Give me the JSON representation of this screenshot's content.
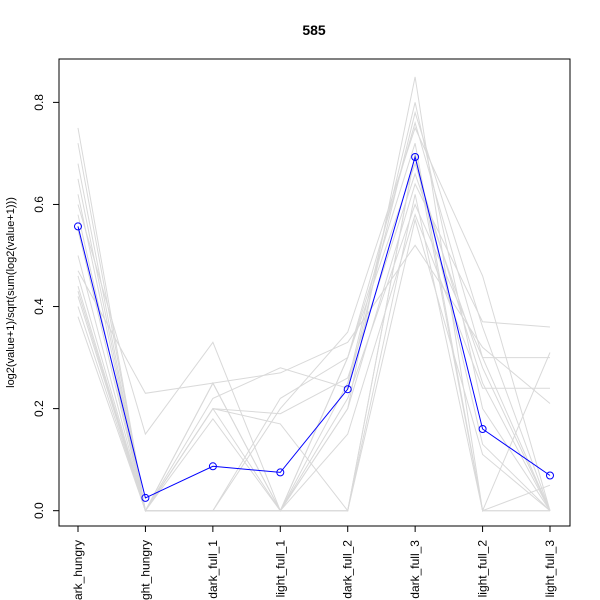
{
  "chart_data": {
    "type": "line",
    "title": "585",
    "xlabel": "",
    "ylabel": "log2(value+1)/sqrt(sum(log2(value+1)))",
    "categories": [
      "dark_hungry",
      "light_hungry",
      "dark_full_1",
      "light_full_1",
      "dark_full_2",
      "dark_full_3",
      "light_full_2",
      "light_full_3"
    ],
    "x_tick_labels_visible": [
      "ark_hungry",
      "ght_hungry",
      "dark_full_1",
      "light_full_1",
      "dark_full_2",
      "dark_full_3",
      "light_full_2",
      "light_full_3"
    ],
    "ylim": [
      -0.03,
      0.885
    ],
    "yticks": [
      0.0,
      0.2,
      0.4,
      0.6,
      0.8
    ],
    "ytick_labels": [
      "0.0",
      "0.2",
      "0.4",
      "0.6",
      "0.8"
    ],
    "grid": false,
    "legend": "none",
    "highlight_color": "#0000ff",
    "background_color": "#d9d9d9",
    "highlight": {
      "values": [
        0.557,
        0.025,
        0.087,
        0.075,
        0.238,
        0.693,
        0.16,
        0.069
      ]
    },
    "background_series": [
      {
        "values": [
          0.75,
          0.0,
          0.0,
          0.0,
          0.2,
          0.85,
          0.0,
          0.0
        ]
      },
      {
        "values": [
          0.72,
          0.0,
          0.25,
          0.0,
          0.25,
          0.8,
          0.2,
          0.0
        ]
      },
      {
        "values": [
          0.68,
          0.0,
          0.0,
          0.0,
          0.3,
          0.76,
          0.3,
          0.0
        ]
      },
      {
        "values": [
          0.65,
          0.0,
          0.2,
          0.0,
          0.0,
          0.7,
          0.0,
          0.31
        ]
      },
      {
        "values": [
          0.62,
          0.0,
          0.0,
          0.2,
          0.35,
          0.75,
          0.46,
          0.0
        ]
      },
      {
        "values": [
          0.6,
          0.15,
          0.33,
          0.0,
          0.3,
          0.68,
          0.25,
          0.0
        ]
      },
      {
        "values": [
          0.58,
          0.0,
          0.0,
          0.0,
          0.0,
          0.62,
          0.0,
          0.0
        ]
      },
      {
        "values": [
          0.55,
          0.0,
          0.25,
          0.0,
          0.2,
          0.64,
          0.37,
          0.36
        ]
      },
      {
        "values": [
          0.5,
          0.0,
          0.18,
          0.0,
          0.22,
          0.6,
          0.3,
          0.3
        ]
      },
      {
        "values": [
          0.47,
          0.23,
          0.25,
          0.27,
          0.33,
          0.52,
          0.32,
          0.21
        ]
      },
      {
        "values": [
          0.46,
          0.0,
          0.0,
          0.0,
          0.15,
          0.58,
          0.24,
          0.24
        ]
      },
      {
        "values": [
          0.44,
          0.0,
          0.2,
          0.17,
          0.0,
          0.7,
          0.13,
          0.0
        ]
      },
      {
        "values": [
          0.42,
          0.0,
          0.22,
          0.28,
          0.24,
          0.78,
          0.36,
          0.0
        ]
      },
      {
        "values": [
          0.4,
          0.0,
          0.2,
          0.19,
          0.26,
          0.66,
          0.28,
          0.0
        ]
      },
      {
        "values": [
          0.38,
          0.0,
          0.0,
          0.22,
          0.3,
          0.72,
          0.0,
          0.05
        ]
      },
      {
        "values": [
          0.43,
          0.0,
          0.0,
          0.0,
          0.0,
          0.57,
          0.11,
          0.0
        ]
      }
    ]
  }
}
